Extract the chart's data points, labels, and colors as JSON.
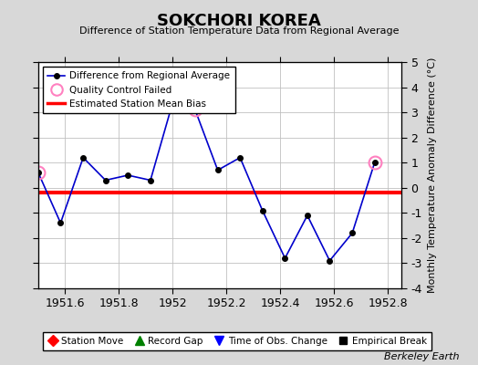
{
  "title": "SOKCHORI KOREA",
  "subtitle": "Difference of Station Temperature Data from Regional Average",
  "ylabel_right": "Monthly Temperature Anomaly Difference (°C)",
  "background_color": "#d8d8d8",
  "plot_bg_color": "#ffffff",
  "gridcolor": "#c0c0c0",
  "x_data": [
    1951.5,
    1951.583,
    1951.667,
    1951.75,
    1951.833,
    1951.917,
    1952.0,
    1952.083,
    1952.167,
    1952.25,
    1952.333,
    1952.417,
    1952.5,
    1952.583,
    1952.667,
    1952.75
  ],
  "y_data": [
    0.6,
    -1.4,
    1.2,
    0.3,
    0.5,
    0.3,
    3.4,
    3.1,
    0.7,
    1.2,
    -0.9,
    -2.8,
    -1.1,
    -2.9,
    -1.8,
    1.0
  ],
  "qc_failed_indices": [
    0,
    7,
    15
  ],
  "mean_bias": -0.2,
  "xlim": [
    1951.5,
    1952.85
  ],
  "ylim": [
    -4,
    5
  ],
  "xticks": [
    1951.6,
    1951.8,
    1952.0,
    1952.2,
    1952.4,
    1952.6,
    1952.8
  ],
  "xticklabels": [
    "1951.6",
    "1951.8",
    "1952",
    "1952.2",
    "1952.4",
    "1952.6",
    "1952.8"
  ],
  "yticks": [
    -4,
    -3,
    -2,
    -1,
    0,
    1,
    2,
    3,
    4,
    5
  ],
  "line_color": "#0000cc",
  "dot_color": "#000000",
  "qc_color": "#ff80c0",
  "bias_color": "#ff0000",
  "watermark": "Berkeley Earth",
  "legend1_labels": [
    "Difference from Regional Average",
    "Quality Control Failed",
    "Estimated Station Mean Bias"
  ],
  "legend2_labels": [
    "Station Move",
    "Record Gap",
    "Time of Obs. Change",
    "Empirical Break"
  ]
}
